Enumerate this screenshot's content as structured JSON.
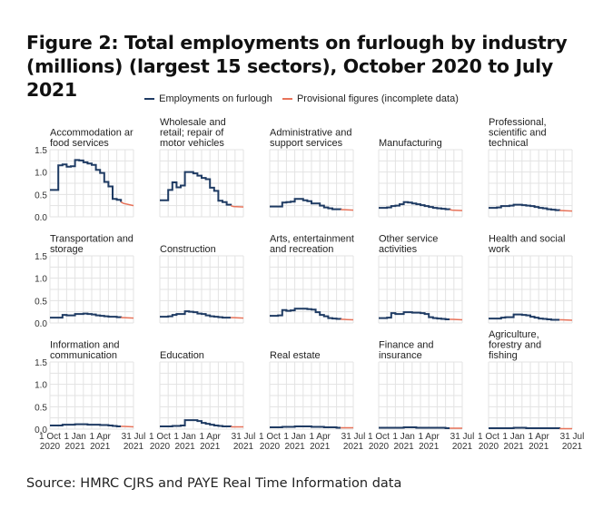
{
  "title": "Figure 2: Total employments on furlough by industry (millions) (largest 15 sectors), October 2020 to July 2021",
  "source": "Source: HMRC CJRS and PAYE Real Time Information data",
  "colors": {
    "main": "#1f3b63",
    "provisional": "#e8735a",
    "grid": "#e3e3e3"
  },
  "chart_data": {
    "type": "line",
    "title": "Figure 2: Total employments on furlough by industry (millions) (largest 15 sectors), October 2020 to July 2021",
    "ylabel": "millions",
    "ylim": [
      0,
      1.5
    ],
    "yticks": [
      "0.0",
      "0.5",
      "1.0",
      "1.5"
    ],
    "xunit": "months since 1 Oct 2020",
    "xlim": [
      0,
      10
    ],
    "xticks": [
      {
        "x": 0,
        "l1": "1 Oct",
        "l2": "2020"
      },
      {
        "x": 3,
        "l1": "1 Jan",
        "l2": "2021"
      },
      {
        "x": 6,
        "l1": "1 Apr",
        "l2": "2021"
      },
      {
        "x": 10,
        "l1": "31 Jul",
        "l2": "2021"
      }
    ],
    "legend": {
      "placement": "top",
      "entries": [
        "Employments on furlough",
        "Provisional figures (incomplete data)"
      ]
    },
    "x": [
      0,
      1,
      1.5,
      2,
      2.5,
      3,
      3.5,
      4,
      4.5,
      5,
      5.5,
      6,
      6.5,
      7,
      7.5,
      8,
      8.5
    ],
    "provisional_x": [
      8.5,
      10
    ],
    "series": [
      {
        "name": [
          "Accommodation ar",
          "food services"
        ],
        "values": [
          0.6,
          1.15,
          1.17,
          1.12,
          1.13,
          1.27,
          1.26,
          1.22,
          1.19,
          1.16,
          1.05,
          0.98,
          0.78,
          0.68,
          0.4,
          0.38,
          0.33
        ],
        "provisional": [
          0.3,
          0.25
        ]
      },
      {
        "name": [
          "Wholesale and",
          "retail; repair of",
          "motor vehicles"
        ],
        "values": [
          0.37,
          0.6,
          0.77,
          0.66,
          0.7,
          1.0,
          1.0,
          0.97,
          0.92,
          0.87,
          0.84,
          0.65,
          0.58,
          0.36,
          0.33,
          0.27,
          0.25
        ],
        "provisional": [
          0.23,
          0.22
        ]
      },
      {
        "name": [
          "Administrative and",
          "support services"
        ],
        "values": [
          0.23,
          0.23,
          0.32,
          0.33,
          0.34,
          0.4,
          0.4,
          0.37,
          0.35,
          0.3,
          0.3,
          0.25,
          0.21,
          0.19,
          0.17,
          0.17,
          0.16
        ],
        "provisional": [
          0.16,
          0.15
        ]
      },
      {
        "name": [
          "Manufacturing"
        ],
        "values": [
          0.2,
          0.21,
          0.24,
          0.25,
          0.28,
          0.33,
          0.32,
          0.3,
          0.28,
          0.26,
          0.24,
          0.22,
          0.2,
          0.19,
          0.18,
          0.17,
          0.16
        ],
        "provisional": [
          0.15,
          0.14
        ]
      },
      {
        "name": [
          "Professional,",
          "scientific and",
          "technical"
        ],
        "values": [
          0.2,
          0.21,
          0.24,
          0.24,
          0.25,
          0.27,
          0.27,
          0.26,
          0.25,
          0.24,
          0.22,
          0.2,
          0.19,
          0.17,
          0.16,
          0.15,
          0.14
        ],
        "provisional": [
          0.14,
          0.13
        ]
      },
      {
        "name": [
          "Transportation and",
          "storage"
        ],
        "values": [
          0.12,
          0.12,
          0.18,
          0.17,
          0.17,
          0.2,
          0.2,
          0.21,
          0.2,
          0.19,
          0.17,
          0.16,
          0.15,
          0.14,
          0.14,
          0.13,
          0.12
        ],
        "provisional": [
          0.12,
          0.11
        ]
      },
      {
        "name": [
          "Construction"
        ],
        "values": [
          0.14,
          0.15,
          0.18,
          0.2,
          0.2,
          0.26,
          0.25,
          0.24,
          0.21,
          0.2,
          0.17,
          0.15,
          0.14,
          0.13,
          0.12,
          0.12,
          0.12
        ],
        "provisional": [
          0.12,
          0.11
        ]
      },
      {
        "name": [
          "Arts, entertainment",
          "and recreation"
        ],
        "values": [
          0.16,
          0.17,
          0.29,
          0.27,
          0.28,
          0.32,
          0.32,
          0.32,
          0.31,
          0.3,
          0.24,
          0.18,
          0.15,
          0.11,
          0.1,
          0.09,
          0.08
        ],
        "provisional": [
          0.08,
          0.07
        ]
      },
      {
        "name": [
          "Other service",
          "activities"
        ],
        "values": [
          0.11,
          0.12,
          0.22,
          0.2,
          0.2,
          0.24,
          0.24,
          0.23,
          0.23,
          0.22,
          0.2,
          0.13,
          0.11,
          0.1,
          0.09,
          0.08,
          0.08
        ],
        "provisional": [
          0.08,
          0.07
        ]
      },
      {
        "name": [
          "Health and social",
          "work"
        ],
        "values": [
          0.1,
          0.1,
          0.12,
          0.13,
          0.13,
          0.19,
          0.19,
          0.18,
          0.17,
          0.14,
          0.12,
          0.1,
          0.09,
          0.08,
          0.07,
          0.07,
          0.07
        ],
        "provisional": [
          0.07,
          0.06
        ]
      },
      {
        "name": [
          "Information and",
          "communication"
        ],
        "values": [
          0.08,
          0.08,
          0.1,
          0.1,
          0.1,
          0.11,
          0.11,
          0.11,
          0.1,
          0.1,
          0.1,
          0.09,
          0.09,
          0.08,
          0.07,
          0.06,
          0.06
        ],
        "provisional": [
          0.06,
          0.05
        ]
      },
      {
        "name": [
          "Education"
        ],
        "values": [
          0.06,
          0.06,
          0.07,
          0.07,
          0.08,
          0.2,
          0.2,
          0.2,
          0.18,
          0.14,
          0.12,
          0.1,
          0.08,
          0.07,
          0.06,
          0.06,
          0.05
        ],
        "provisional": [
          0.05,
          0.05
        ]
      },
      {
        "name": [
          "Real estate"
        ],
        "values": [
          0.04,
          0.04,
          0.05,
          0.05,
          0.05,
          0.06,
          0.06,
          0.06,
          0.06,
          0.05,
          0.05,
          0.05,
          0.04,
          0.04,
          0.04,
          0.03,
          0.03
        ],
        "provisional": [
          0.03,
          0.03
        ]
      },
      {
        "name": [
          "Finance and",
          "insurance"
        ],
        "values": [
          0.03,
          0.03,
          0.03,
          0.03,
          0.03,
          0.04,
          0.04,
          0.04,
          0.03,
          0.03,
          0.03,
          0.03,
          0.03,
          0.03,
          0.03,
          0.02,
          0.02
        ],
        "provisional": [
          0.02,
          0.02
        ]
      },
      {
        "name": [
          "Agriculture,",
          "forestry and",
          "fishing"
        ],
        "values": [
          0.02,
          0.02,
          0.02,
          0.02,
          0.02,
          0.03,
          0.03,
          0.03,
          0.02,
          0.02,
          0.02,
          0.02,
          0.02,
          0.02,
          0.02,
          0.02,
          0.01
        ],
        "provisional": [
          0.01,
          0.01
        ]
      }
    ]
  }
}
